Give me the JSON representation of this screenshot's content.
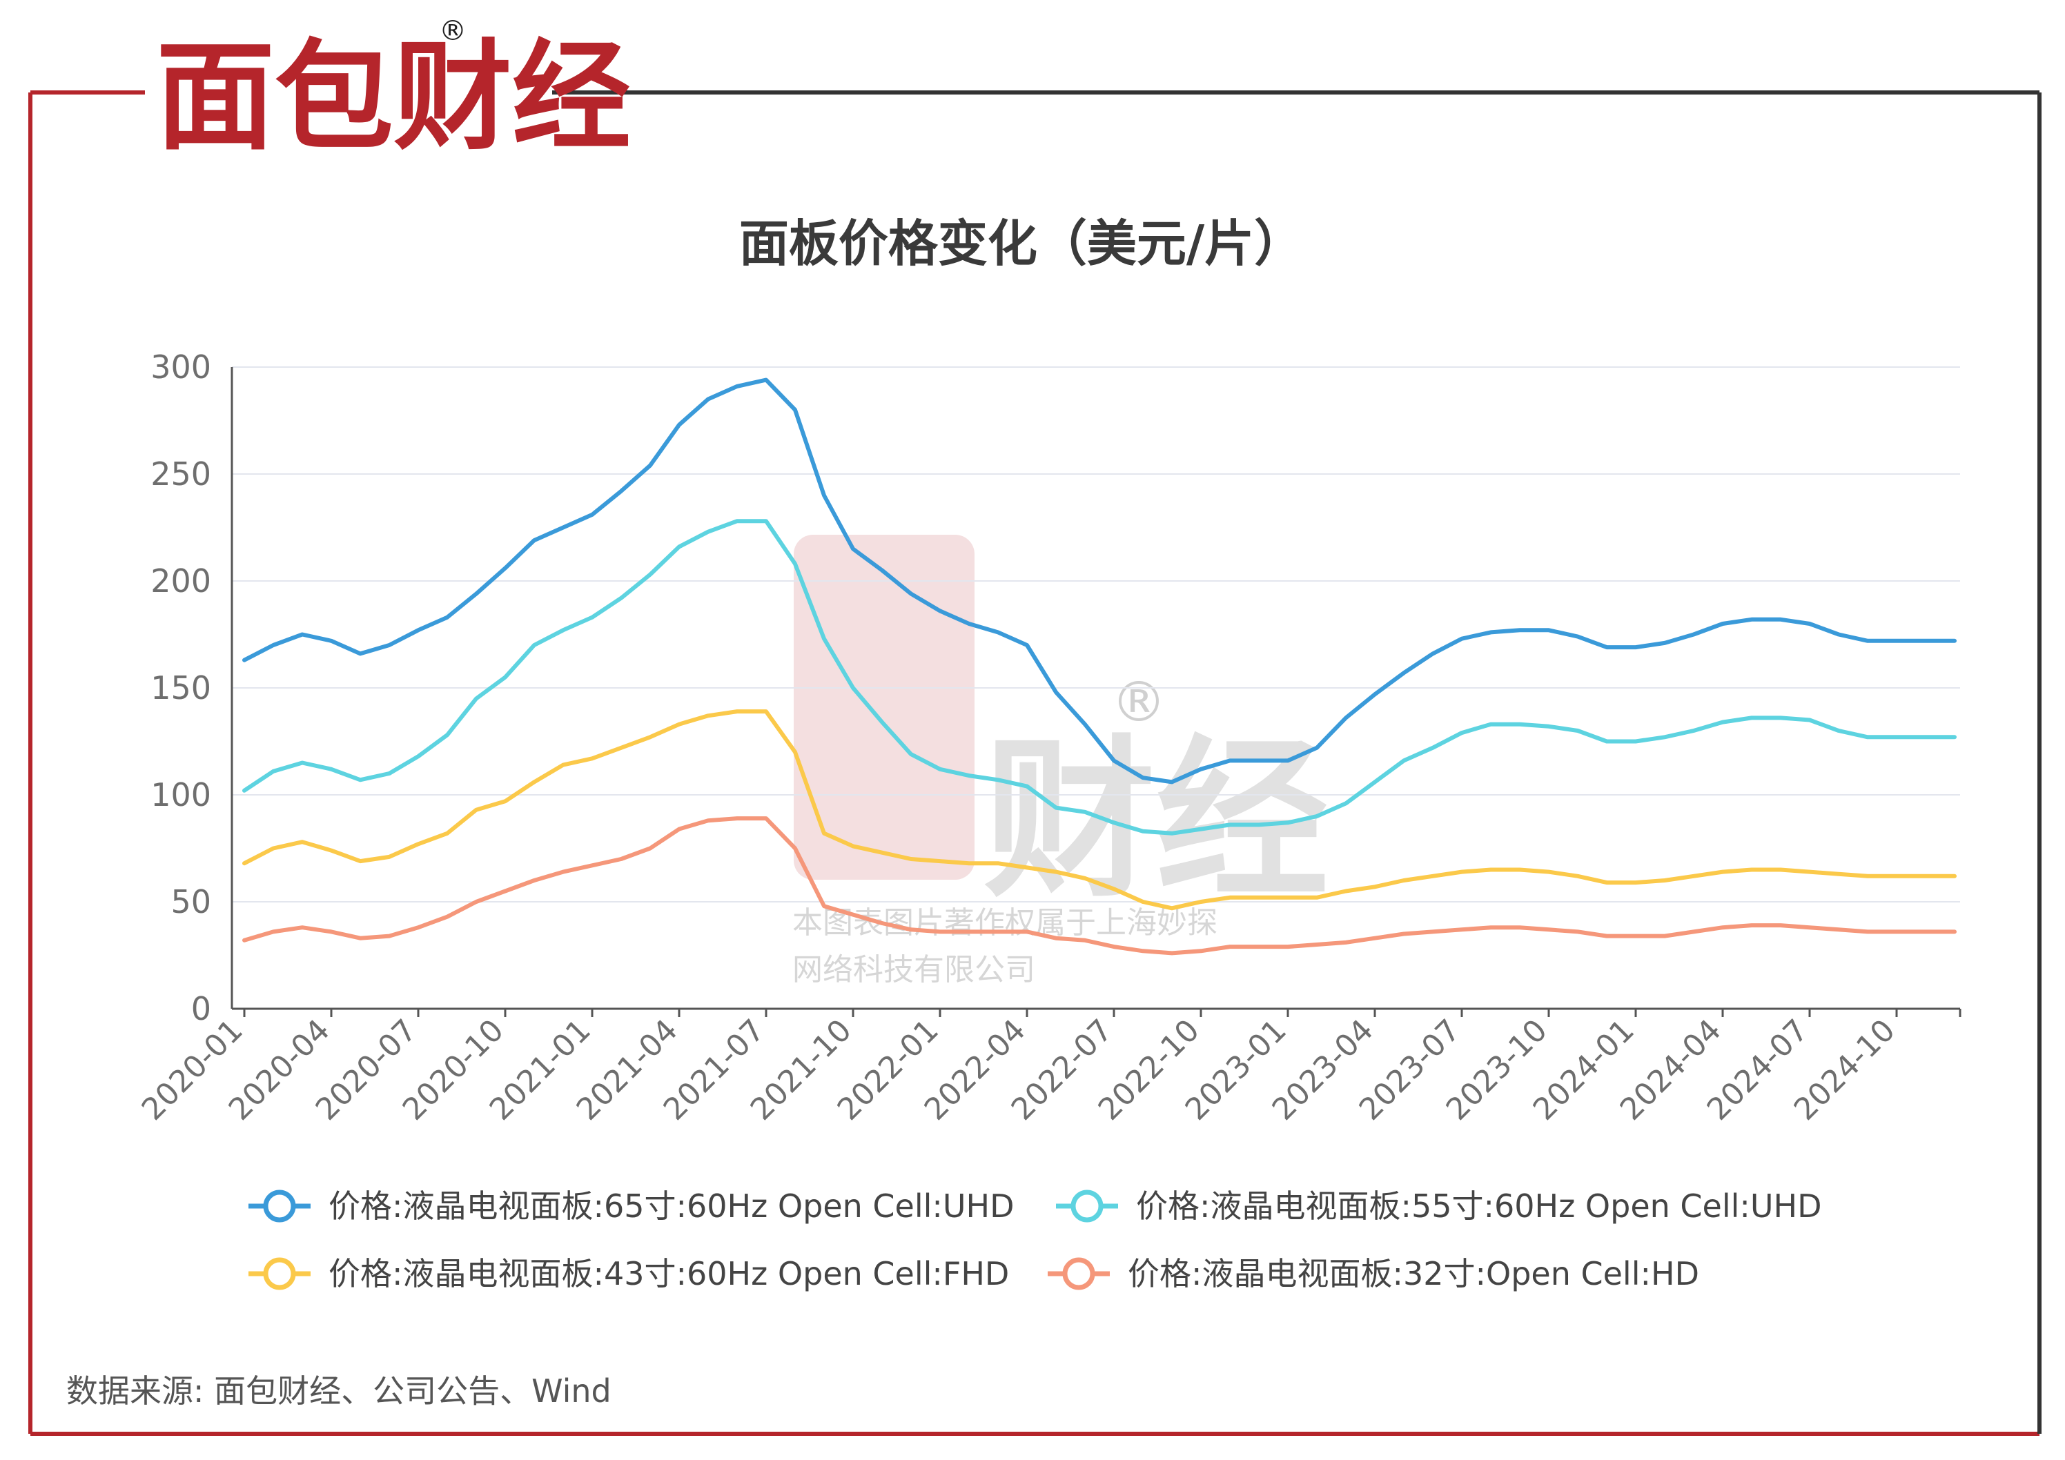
{
  "brand": {
    "logo_text": "面包财经",
    "registered_mark": "®",
    "color_red": "#b5252b",
    "color_dark": "#1f1f1f"
  },
  "source_note": "数据来源: 面包财经、公司公告、Wind",
  "watermark": {
    "line1": "本图表图片著作权属于上海妙探",
    "line2": "网络科技有限公司"
  },
  "chart_data": {
    "type": "line",
    "title": "面板价格变化（美元/片）",
    "ylim": [
      0,
      300
    ],
    "yticks": [
      0,
      50,
      100,
      150,
      200,
      250,
      300
    ],
    "grid": true,
    "legend_position": "bottom",
    "xtick_labels": [
      "2020-01",
      "2020-04",
      "2020-07",
      "2020-10",
      "2021-01",
      "2021-04",
      "2021-07",
      "2021-10",
      "2022-01",
      "2022-04",
      "2022-07",
      "2022-10",
      "2023-01",
      "2023-04",
      "2023-07",
      "2023-10",
      "2024-01",
      "2024-04",
      "2024-07",
      "2024-10"
    ],
    "x": [
      "2020-01",
      "2020-02",
      "2020-03",
      "2020-04",
      "2020-05",
      "2020-06",
      "2020-07",
      "2020-08",
      "2020-09",
      "2020-10",
      "2020-11",
      "2020-12",
      "2021-01",
      "2021-02",
      "2021-03",
      "2021-04",
      "2021-05",
      "2021-06",
      "2021-07",
      "2021-08",
      "2021-09",
      "2021-10",
      "2021-11",
      "2021-12",
      "2022-01",
      "2022-02",
      "2022-03",
      "2022-04",
      "2022-05",
      "2022-06",
      "2022-07",
      "2022-08",
      "2022-09",
      "2022-10",
      "2022-11",
      "2022-12",
      "2023-01",
      "2023-02",
      "2023-03",
      "2023-04",
      "2023-05",
      "2023-06",
      "2023-07",
      "2023-08",
      "2023-09",
      "2023-10",
      "2023-11",
      "2023-12",
      "2024-01",
      "2024-02",
      "2024-03",
      "2024-04",
      "2024-05",
      "2024-06",
      "2024-07",
      "2024-08",
      "2024-09",
      "2024-10",
      "2024-11",
      "2024-12"
    ],
    "series": [
      {
        "name": "价格:液晶电视面板:65寸:60Hz Open Cell:UHD",
        "color": "#3a9ad9",
        "values": [
          163,
          170,
          175,
          172,
          166,
          170,
          177,
          183,
          194,
          206,
          219,
          225,
          231,
          242,
          254,
          273,
          285,
          291,
          294,
          280,
          240,
          215,
          205,
          194,
          186,
          180,
          176,
          170,
          148,
          133,
          116,
          108,
          106,
          112,
          116,
          116,
          116,
          122,
          136,
          147,
          157,
          166,
          173,
          176,
          177,
          177,
          174,
          169,
          169,
          171,
          175,
          180,
          182,
          182,
          180,
          175,
          172,
          172,
          172,
          172
        ]
      },
      {
        "name": "价格:液晶电视面板:55寸:60Hz Open Cell:UHD",
        "color": "#5dd3e0",
        "values": [
          102,
          111,
          115,
          112,
          107,
          110,
          118,
          128,
          145,
          155,
          170,
          177,
          183,
          192,
          203,
          216,
          223,
          228,
          228,
          208,
          173,
          150,
          134,
          119,
          112,
          109,
          107,
          104,
          94,
          92,
          87,
          83,
          82,
          84,
          86,
          86,
          87,
          90,
          96,
          106,
          116,
          122,
          129,
          133,
          133,
          132,
          130,
          125,
          125,
          127,
          130,
          134,
          136,
          136,
          135,
          130,
          127,
          127,
          127,
          127
        ]
      },
      {
        "name": "价格:液晶电视面板:43寸:60Hz Open Cell:FHD",
        "color": "#fbc94a",
        "values": [
          68,
          75,
          78,
          74,
          69,
          71,
          77,
          82,
          93,
          97,
          106,
          114,
          117,
          122,
          127,
          133,
          137,
          139,
          139,
          120,
          82,
          76,
          73,
          70,
          69,
          68,
          68,
          66,
          64,
          61,
          56,
          50,
          47,
          50,
          52,
          52,
          52,
          52,
          55,
          57,
          60,
          62,
          64,
          65,
          65,
          64,
          62,
          59,
          59,
          60,
          62,
          64,
          65,
          65,
          64,
          63,
          62,
          62,
          62,
          62
        ]
      },
      {
        "name": "价格:液晶电视面板:32寸:Open Cell:HD",
        "color": "#f5977a",
        "values": [
          32,
          36,
          38,
          36,
          33,
          34,
          38,
          43,
          50,
          55,
          60,
          64,
          67,
          70,
          75,
          84,
          88,
          89,
          89,
          75,
          48,
          44,
          40,
          37,
          36,
          36,
          36,
          36,
          33,
          32,
          29,
          27,
          26,
          27,
          29,
          29,
          29,
          30,
          31,
          33,
          35,
          36,
          37,
          38,
          38,
          37,
          36,
          34,
          34,
          34,
          36,
          38,
          39,
          39,
          38,
          37,
          36,
          36,
          36,
          36
        ]
      }
    ]
  }
}
